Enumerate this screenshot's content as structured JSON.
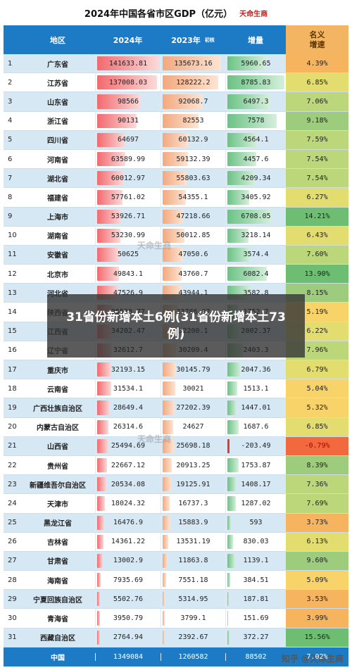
{
  "title": "2024年中国各省市区GDP（亿元）",
  "brand": "天命生商",
  "headers": {
    "region": "地区",
    "y2024": "2024年",
    "y2023": "2023年",
    "y2023_note": "初核",
    "increase": "增量",
    "rate_line1": "名义",
    "rate_line2": "增速"
  },
  "rows": [
    {
      "rank": "1",
      "name": "广东省",
      "v2024": "141633.81",
      "v2023": "135673.16",
      "inc": "5960.65",
      "rate": "4.39%",
      "n2024": 141633.81,
      "n2023": 135673.16,
      "ninc": 5960.65,
      "nrate": 4.39
    },
    {
      "rank": "2",
      "name": "江苏省",
      "v2024": "137008.03",
      "v2023": "128222.2",
      "inc": "8785.83",
      "rate": "6.85%",
      "n2024": 137008.03,
      "n2023": 128222.2,
      "ninc": 8785.83,
      "nrate": 6.85
    },
    {
      "rank": "3",
      "name": "山东省",
      "v2024": "98566",
      "v2023": "92068.7",
      "inc": "6497.3",
      "rate": "7.06%",
      "n2024": 98566,
      "n2023": 92068.7,
      "ninc": 6497.3,
      "nrate": 7.06
    },
    {
      "rank": "4",
      "name": "浙江省",
      "v2024": "90131",
      "v2023": "82553",
      "inc": "7578",
      "rate": "9.18%",
      "n2024": 90131,
      "n2023": 82553,
      "ninc": 7578,
      "nrate": 9.18
    },
    {
      "rank": "5",
      "name": "四川省",
      "v2024": "64697",
      "v2023": "60132.9",
      "inc": "4564.1",
      "rate": "7.59%",
      "n2024": 64697,
      "n2023": 60132.9,
      "ninc": 4564.1,
      "nrate": 7.59
    },
    {
      "rank": "6",
      "name": "河南省",
      "v2024": "63589.99",
      "v2023": "59132.39",
      "inc": "4457.6",
      "rate": "7.54%",
      "n2024": 63589.99,
      "n2023": 59132.39,
      "ninc": 4457.6,
      "nrate": 7.54
    },
    {
      "rank": "7",
      "name": "湖北省",
      "v2024": "60012.97",
      "v2023": "55803.63",
      "inc": "4209.34",
      "rate": "7.54%",
      "n2024": 60012.97,
      "n2023": 55803.63,
      "ninc": 4209.34,
      "nrate": 7.54
    },
    {
      "rank": "8",
      "name": "福建省",
      "v2024": "57761.02",
      "v2023": "54355.1",
      "inc": "3405.92",
      "rate": "6.27%",
      "n2024": 57761.02,
      "n2023": 54355.1,
      "ninc": 3405.92,
      "nrate": 6.27
    },
    {
      "rank": "9",
      "name": "上海市",
      "v2024": "53926.71",
      "v2023": "47218.66",
      "inc": "6708.05",
      "rate": "14.21%",
      "n2024": 53926.71,
      "n2023": 47218.66,
      "ninc": 6708.05,
      "nrate": 14.21
    },
    {
      "rank": "10",
      "name": "湖南省",
      "v2024": "53230.99",
      "v2023": "50012.85",
      "inc": "3218.14",
      "rate": "6.43%",
      "n2024": 53230.99,
      "n2023": 50012.85,
      "ninc": 3218.14,
      "nrate": 6.43
    },
    {
      "rank": "11",
      "name": "安徽省",
      "v2024": "50625",
      "v2023": "47050.6",
      "inc": "3574.4",
      "rate": "7.60%",
      "n2024": 50625,
      "n2023": 47050.6,
      "ninc": 3574.4,
      "nrate": 7.6
    },
    {
      "rank": "12",
      "name": "北京市",
      "v2024": "49843.1",
      "v2023": "43760.7",
      "inc": "6082.4",
      "rate": "13.90%",
      "n2024": 49843.1,
      "n2023": 43760.7,
      "ninc": 6082.4,
      "nrate": 13.9
    },
    {
      "rank": "13",
      "name": "河北省",
      "v2024": "47526.9",
      "v2023": "43944.1",
      "inc": "3582.8",
      "rate": "8.15%",
      "n2024": 47526.9,
      "n2023": 43944.1,
      "ninc": 3582.8,
      "nrate": 8.15
    },
    {
      "rank": "14",
      "name": "陕西省",
      "v2024": "35538.77",
      "v2023": "33786.07",
      "inc": "1752.7",
      "rate": "5.19%",
      "n2024": 35538.77,
      "n2023": 33786.07,
      "ninc": 1752.7,
      "nrate": 5.19
    },
    {
      "rank": "15",
      "name": "江西省",
      "v2024": "34202.47",
      "v2023": "32200.1",
      "inc": "2002.37",
      "rate": "6.22%",
      "n2024": 34202.47,
      "n2023": 32200.1,
      "ninc": 2002.37,
      "nrate": 6.22
    },
    {
      "rank": "16",
      "name": "辽宁省",
      "v2024": "32612.7",
      "v2023": "30209.4",
      "inc": "2403.3",
      "rate": "7.96%",
      "n2024": 32612.7,
      "n2023": 30209.4,
      "ninc": 2403.3,
      "nrate": 7.96
    },
    {
      "rank": "17",
      "name": "重庆市",
      "v2024": "32193.15",
      "v2023": "30145.79",
      "inc": "2047.36",
      "rate": "6.79%",
      "n2024": 32193.15,
      "n2023": 30145.79,
      "ninc": 2047.36,
      "nrate": 6.79
    },
    {
      "rank": "18",
      "name": "云南省",
      "v2024": "31534.1",
      "v2023": "30021",
      "inc": "1513.1",
      "rate": "5.04%",
      "n2024": 31534.1,
      "n2023": 30021,
      "ninc": 1513.1,
      "nrate": 5.04
    },
    {
      "rank": "19",
      "name": "广西壮族自治区",
      "v2024": "28649.4",
      "v2023": "27202.39",
      "inc": "1447.01",
      "rate": "5.32%",
      "n2024": 28649.4,
      "n2023": 27202.39,
      "ninc": 1447.01,
      "nrate": 5.32
    },
    {
      "rank": "20",
      "name": "内蒙古自治区",
      "v2024": "26314.6",
      "v2023": "24627",
      "inc": "1687.6",
      "rate": "6.85%",
      "n2024": 26314.6,
      "n2023": 24627,
      "ninc": 1687.6,
      "nrate": 6.85
    },
    {
      "rank": "21",
      "name": "山西省",
      "v2024": "25494.69",
      "v2023": "25698.18",
      "inc": "-203.49",
      "rate": "-0.79%",
      "n2024": 25494.69,
      "n2023": 25698.18,
      "ninc": -203.49,
      "nrate": -0.79
    },
    {
      "rank": "22",
      "name": "贵州省",
      "v2024": "22667.12",
      "v2023": "20913.25",
      "inc": "1753.87",
      "rate": "8.39%",
      "n2024": 22667.12,
      "n2023": 20913.25,
      "ninc": 1753.87,
      "nrate": 8.39
    },
    {
      "rank": "23",
      "name": "新疆维吾尔自治区",
      "v2024": "20534.08",
      "v2023": "19125.91",
      "inc": "1408.17",
      "rate": "7.36%",
      "n2024": 20534.08,
      "n2023": 19125.91,
      "ninc": 1408.17,
      "nrate": 7.36
    },
    {
      "rank": "24",
      "name": "天津市",
      "v2024": "18024.32",
      "v2023": "16737.3",
      "inc": "1287.02",
      "rate": "7.69%",
      "n2024": 18024.32,
      "n2023": 16737.3,
      "ninc": 1287.02,
      "nrate": 7.69
    },
    {
      "rank": "25",
      "name": "黑龙江省",
      "v2024": "16476.9",
      "v2023": "15883.9",
      "inc": "593",
      "rate": "3.73%",
      "n2024": 16476.9,
      "n2023": 15883.9,
      "ninc": 593,
      "nrate": 3.73
    },
    {
      "rank": "26",
      "name": "吉林省",
      "v2024": "14361.22",
      "v2023": "13531.19",
      "inc": "830.03",
      "rate": "6.13%",
      "n2024": 14361.22,
      "n2023": 13531.19,
      "ninc": 830.03,
      "nrate": 6.13
    },
    {
      "rank": "27",
      "name": "甘肃省",
      "v2024": "13002.9",
      "v2023": "11863.8",
      "inc": "1139.1",
      "rate": "9.60%",
      "n2024": 13002.9,
      "n2023": 11863.8,
      "ninc": 1139.1,
      "nrate": 9.6
    },
    {
      "rank": "28",
      "name": "海南省",
      "v2024": "7935.69",
      "v2023": "7551.18",
      "inc": "384.51",
      "rate": "5.09%",
      "n2024": 7935.69,
      "n2023": 7551.18,
      "ninc": 384.51,
      "nrate": 5.09
    },
    {
      "rank": "29",
      "name": "宁夏回族自治区",
      "v2024": "5502.76",
      "v2023": "5314.95",
      "inc": "187.81",
      "rate": "3.53%",
      "n2024": 5502.76,
      "n2023": 5314.95,
      "ninc": 187.81,
      "nrate": 3.53
    },
    {
      "rank": "30",
      "name": "青海省",
      "v2024": "3950.79",
      "v2023": "3799.1",
      "inc": "151.69",
      "rate": "3.99%",
      "n2024": 3950.79,
      "n2023": 3799.1,
      "ninc": 151.69,
      "nrate": 3.99
    },
    {
      "rank": "31",
      "name": "西藏自治区",
      "v2024": "2764.94",
      "v2023": "2392.67",
      "inc": "372.27",
      "rate": "15.56%",
      "n2024": 2764.94,
      "n2023": 2392.67,
      "ninc": 372.27,
      "nrate": 15.56
    }
  ],
  "total": {
    "name": "中国",
    "v2024": "1349084",
    "v2023": "1260582",
    "inc": "88502",
    "rate": "7.02%"
  },
  "overlay": "31省份新增本土6例(31省份新增本土73例)",
  "watermark": "天命生商",
  "footer_credit": "知乎 @天命生商",
  "colors": {
    "header_bg": "#1d7ac4",
    "rate_header_bg": "#f3b562",
    "bar_2024": "#f26a6f",
    "bar_2023": "#f2a97f",
    "bar_increase": "#6cc285",
    "negative": "#e23b3b"
  }
}
